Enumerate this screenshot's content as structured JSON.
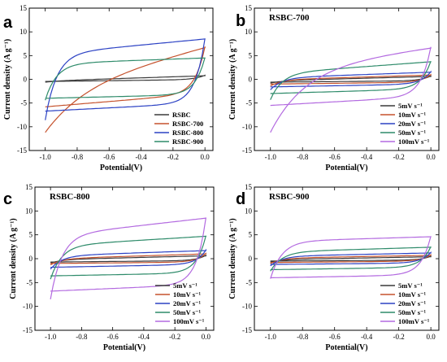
{
  "chart_data": [
    {
      "type": "line",
      "panel_label": "a",
      "title": "",
      "xlabel": "Potential(V)",
      "ylabel": "Current density (A g⁻¹)",
      "xlim": [
        -1.1,
        0.05
      ],
      "ylim": [
        -15,
        15
      ],
      "xticks": [
        "-1.0",
        "-0.8",
        "-0.6",
        "-0.4",
        "-0.2",
        "0.0"
      ],
      "yticks": [
        "-15",
        "-10",
        "-5",
        "0",
        "5",
        "10",
        "15"
      ],
      "legend_position": "lower-right",
      "series": [
        {
          "name": "RSBC",
          "color": "#3a3a3a",
          "cv": {
            "v_start": -1.0,
            "v_end": 0.0,
            "anodic_start": -0.35,
            "anodic_end": 0.75,
            "cathodic_start": -0.45,
            "cathodic_end": -0.05,
            "tail_end": 0.85,
            "tail_start": -0.6
          }
        },
        {
          "name": "RSBC-700",
          "color": "#c5522d",
          "cv": {
            "v_start": -1.0,
            "v_end": 0.0,
            "anodic_start": -2.0,
            "anodic_end": 6.8,
            "cathodic_start": -5.8,
            "cathodic_end": -3.0,
            "tail_end": 6.9,
            "tail_start": -11.2,
            "rise": 0.2
          }
        },
        {
          "name": "RSBC-800",
          "color": "#2c42c4",
          "cv": {
            "v_start": -1.0,
            "v_end": 0.0,
            "anodic_start": 5.3,
            "anodic_end": 8.5,
            "cathodic_start": -6.7,
            "cathodic_end": -5.0,
            "tail_end": 8.6,
            "tail_start": -8.6
          }
        },
        {
          "name": "RSBC-900",
          "color": "#2e8b6a",
          "cv": {
            "v_start": -1.0,
            "v_end": 0.0,
            "anodic_start": 3.3,
            "anodic_end": 4.5,
            "cathodic_start": -4.0,
            "cathodic_end": -3.2,
            "tail_end": 4.6,
            "tail_start": -4.4
          }
        }
      ]
    },
    {
      "type": "line",
      "panel_label": "b",
      "title": "RSBC-700",
      "xlabel": "Potential(V)",
      "ylabel": "Current density (A g⁻¹)",
      "xlim": [
        -1.1,
        0.05
      ],
      "ylim": [
        -15,
        15
      ],
      "xticks": [
        "-1.0",
        "-0.8",
        "-0.6",
        "-0.4",
        "-0.2",
        "0.0"
      ],
      "yticks": [
        "-15",
        "-10",
        "-5",
        "0",
        "5",
        "10",
        "15"
      ],
      "legend_position": "lower-right",
      "series": [
        {
          "name": "5mV s⁻¹",
          "color": "#3a3a3a",
          "cv": {
            "v_start": -1.0,
            "v_end": 0.0,
            "anodic_start": -0.3,
            "anodic_end": 0.6,
            "cathodic_start": -0.6,
            "cathodic_end": -0.3,
            "tail_end": 0.7,
            "tail_start": -0.8
          }
        },
        {
          "name": "10mV s⁻¹",
          "color": "#c5522d",
          "cv": {
            "v_start": -1.0,
            "v_end": 0.0,
            "anodic_start": -0.1,
            "anodic_end": 0.9,
            "cathodic_start": -1.0,
            "cathodic_end": -0.6,
            "tail_end": 1.0,
            "tail_start": -1.4
          }
        },
        {
          "name": "20mV s⁻¹",
          "color": "#2c42c4",
          "cv": {
            "v_start": -1.0,
            "v_end": 0.0,
            "anodic_start": 0.3,
            "anodic_end": 1.5,
            "cathodic_start": -1.6,
            "cathodic_end": -1.0,
            "tail_end": 1.6,
            "tail_start": -2.2
          }
        },
        {
          "name": "50mV s⁻¹",
          "color": "#2e8b6a",
          "cv": {
            "v_start": -1.0,
            "v_end": 0.0,
            "anodic_start": 1.2,
            "anodic_end": 3.7,
            "cathodic_start": -3.0,
            "cathodic_end": -2.0,
            "tail_end": 3.8,
            "tail_start": -4.3
          }
        },
        {
          "name": "100mV s⁻¹",
          "color": "#b36ae0",
          "cv": {
            "v_start": -1.0,
            "v_end": 0.0,
            "anodic_start": 2.2,
            "anodic_end": 6.7,
            "cathodic_start": -5.5,
            "cathodic_end": -3.6,
            "tail_end": 6.8,
            "tail_start": -11.2,
            "rise": 0.2
          }
        }
      ]
    },
    {
      "type": "line",
      "panel_label": "c",
      "title": "RSBC-800",
      "xlabel": "Potential(V)",
      "ylabel": "Current density (A g⁻¹)",
      "xlim": [
        -1.1,
        0.05
      ],
      "ylim": [
        -15,
        15
      ],
      "xticks": [
        "-1.0",
        "-0.8",
        "-0.6",
        "-0.4",
        "-0.2",
        "0.0"
      ],
      "yticks": [
        "-15",
        "-10",
        "-5",
        "0",
        "5",
        "10",
        "15"
      ],
      "legend_position": "lower-right",
      "series": [
        {
          "name": "5mV s⁻¹",
          "color": "#3a3a3a",
          "cv": {
            "v_start": -1.0,
            "v_end": 0.0,
            "anodic_start": -0.2,
            "anodic_end": 0.6,
            "cathodic_start": -0.7,
            "cathodic_end": -0.4,
            "tail_end": 0.7,
            "tail_start": -0.9
          }
        },
        {
          "name": "10mV s⁻¹",
          "color": "#c5522d",
          "cv": {
            "v_start": -1.0,
            "v_end": 0.0,
            "anodic_start": 0.0,
            "anodic_end": 1.0,
            "cathodic_start": -1.0,
            "cathodic_end": -0.7,
            "tail_end": 1.1,
            "tail_start": -1.3
          }
        },
        {
          "name": "20mV s⁻¹",
          "color": "#2c42c4",
          "cv": {
            "v_start": -1.0,
            "v_end": 0.0,
            "anodic_start": 0.6,
            "anodic_end": 1.7,
            "cathodic_start": -1.8,
            "cathodic_end": -1.2,
            "tail_end": 1.8,
            "tail_start": -2.2
          }
        },
        {
          "name": "50mV s⁻¹",
          "color": "#2e8b6a",
          "cv": {
            "v_start": -1.0,
            "v_end": 0.0,
            "anodic_start": 2.7,
            "anodic_end": 4.7,
            "cathodic_start": -3.6,
            "cathodic_end": -3.0,
            "tail_end": 4.8,
            "tail_start": -4.3
          }
        },
        {
          "name": "100mV s⁻¹",
          "color": "#b36ae0",
          "cv": {
            "v_start": -1.0,
            "v_end": 0.0,
            "anodic_start": 4.8,
            "anodic_end": 8.5,
            "cathodic_start": -6.8,
            "cathodic_end": -5.4,
            "tail_end": 8.6,
            "tail_start": -8.5
          }
        }
      ]
    },
    {
      "type": "line",
      "panel_label": "d",
      "title": "RSBC-900",
      "xlabel": "Potential(V)",
      "ylabel": "Current density (A g⁻¹)",
      "xlim": [
        -1.1,
        0.05
      ],
      "ylim": [
        -15,
        15
      ],
      "xticks": [
        "-1.0",
        "-0.8",
        "-0.6",
        "-0.4",
        "-0.2",
        "0.0"
      ],
      "yticks": [
        "-15",
        "-10",
        "-5",
        "0",
        "5",
        "10",
        "15"
      ],
      "legend_position": "lower-right",
      "series": [
        {
          "name": "5mV s⁻¹",
          "color": "#3a3a3a",
          "cv": {
            "v_start": -1.0,
            "v_end": 0.0,
            "anodic_start": -0.2,
            "anodic_end": 0.4,
            "cathodic_start": -0.5,
            "cathodic_end": -0.3,
            "tail_end": 0.5,
            "tail_start": -0.7
          }
        },
        {
          "name": "10mV s⁻¹",
          "color": "#c5522d",
          "cv": {
            "v_start": -1.0,
            "v_end": 0.0,
            "anodic_start": 0.1,
            "anodic_end": 0.7,
            "cathodic_start": -0.8,
            "cathodic_end": -0.5,
            "tail_end": 0.8,
            "tail_start": -1.0
          }
        },
        {
          "name": "20mV s⁻¹",
          "color": "#2c42c4",
          "cv": {
            "v_start": -1.0,
            "v_end": 0.0,
            "anodic_start": 0.5,
            "anodic_end": 1.2,
            "cathodic_start": -1.2,
            "cathodic_end": -0.9,
            "tail_end": 1.3,
            "tail_start": -1.5
          }
        },
        {
          "name": "50mV s⁻¹",
          "color": "#2e8b6a",
          "cv": {
            "v_start": -1.0,
            "v_end": 0.0,
            "anodic_start": 1.4,
            "anodic_end": 2.4,
            "cathodic_start": -2.3,
            "cathodic_end": -1.8,
            "tail_end": 2.5,
            "tail_start": -2.6
          }
        },
        {
          "name": "100mV s⁻¹",
          "color": "#b36ae0",
          "cv": {
            "v_start": -1.0,
            "v_end": 0.0,
            "anodic_start": 3.6,
            "anodic_end": 4.6,
            "cathodic_start": -4.0,
            "cathodic_end": -3.4,
            "tail_end": 4.7,
            "tail_start": -4.2
          }
        }
      ]
    }
  ]
}
